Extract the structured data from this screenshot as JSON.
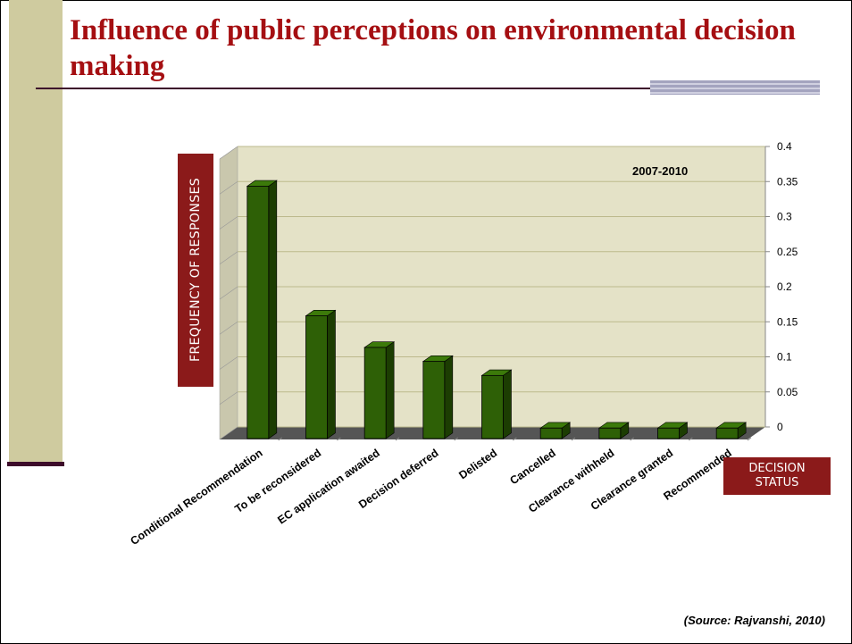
{
  "slide": {
    "title": "Influence of public perceptions on environmental decision making",
    "source": "(Source: Rajvanshi, 2010)"
  },
  "colors": {
    "title": "#a50f12",
    "label_box": "#8b1a1a",
    "bar_front": "#2e6006",
    "plot_bg": "#e4e2c7",
    "left_band": "#cfcb9f"
  },
  "chart_data": {
    "type": "bar",
    "title": "",
    "annotation": "2007-2010",
    "ylabel": "FREQUENCY OF RESPONSES",
    "xlabel": "DECISION STATUS",
    "categories": [
      "Conditional Recommendation",
      "To be reconsidered",
      "EC application awaited",
      "Decision deferred",
      "Delisted",
      "Cancelled",
      "Clearance withheld",
      "Clearance granted",
      "Recommended"
    ],
    "values": [
      0.36,
      0.175,
      0.13,
      0.11,
      0.09,
      0.015,
      0.015,
      0.015,
      0.015
    ],
    "ylim": [
      0,
      0.4
    ],
    "yticks": [
      "0",
      "0.05",
      "0.1",
      "0.15",
      "0.2",
      "0.25",
      "0.3",
      "0.35",
      "0.4"
    ],
    "y_axis_side": "right",
    "grid": true,
    "legend": "none"
  }
}
